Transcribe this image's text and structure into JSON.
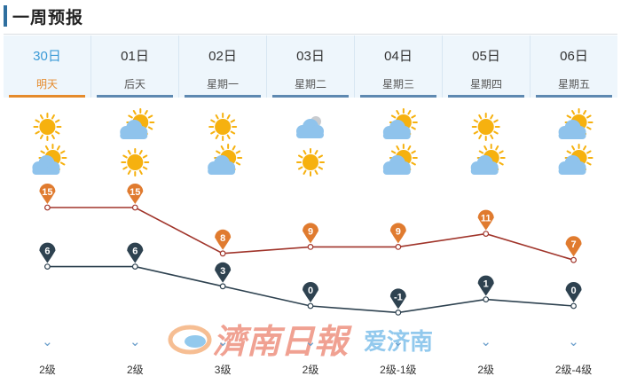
{
  "header": {
    "title": "一周预报"
  },
  "days": [
    {
      "date": "30日",
      "label": "明天",
      "active": true
    },
    {
      "date": "01日",
      "label": "后天",
      "active": false
    },
    {
      "date": "02日",
      "label": "星期一",
      "active": false
    },
    {
      "date": "03日",
      "label": "星期二",
      "active": false
    },
    {
      "date": "04日",
      "label": "星期三",
      "active": false
    },
    {
      "date": "05日",
      "label": "星期四",
      "active": false
    },
    {
      "date": "06日",
      "label": "星期五",
      "active": false
    }
  ],
  "weather": {
    "day": [
      "sun-icon",
      "partly-cloudy-icon",
      "sun-icon",
      "cloudy-icon",
      "partly-cloudy-icon",
      "sun-icon",
      "partly-cloudy-icon"
    ],
    "night": [
      "partly-cloudy-icon",
      "sun-icon",
      "partly-cloudy-icon",
      "sun-icon",
      "partly-cloudy-icon",
      "partly-cloudy-icon",
      "partly-cloudy-icon"
    ]
  },
  "chart_data": {
    "type": "line",
    "x": [
      "30日",
      "01日",
      "02日",
      "03日",
      "04日",
      "05日",
      "06日"
    ],
    "series": [
      {
        "values": [
          15,
          15,
          8,
          9,
          9,
          11,
          7
        ],
        "color": "#e07b2f",
        "line": "#a0342a"
      },
      {
        "values": [
          6,
          6,
          3,
          0,
          -1,
          1,
          0
        ],
        "color": "#2e4250",
        "line": "#2e4250"
      }
    ]
  },
  "wind": [
    "2级",
    "2级",
    "3级",
    "2级",
    "2级-1级",
    "2级",
    "2级-4级"
  ],
  "watermark": {
    "text": "濟南日報",
    "text2": "爱济南"
  },
  "colors": {
    "accent": "#e58b2c",
    "tab_bg": "#eef6fc",
    "tab_line": "#5e89b1",
    "sun": "#f6b10f",
    "cloud": "#8fc3ec"
  }
}
